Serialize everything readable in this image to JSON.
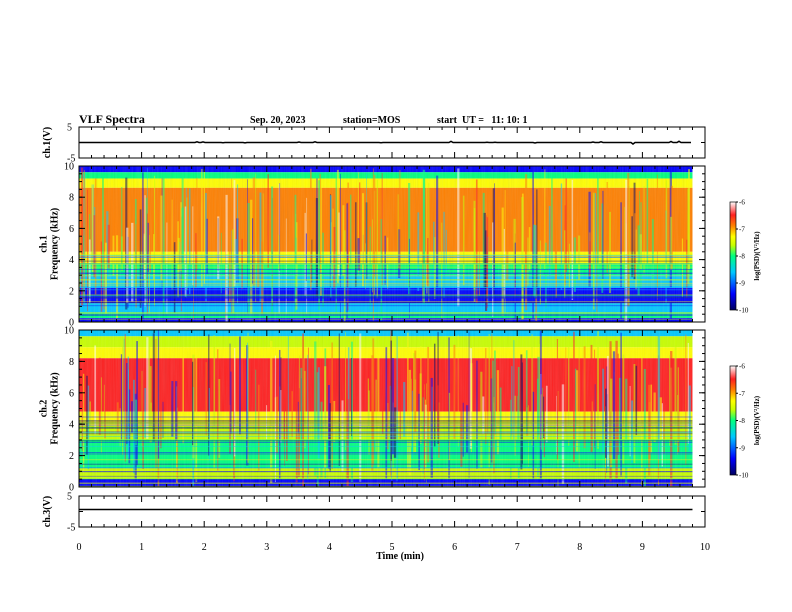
{
  "header": {
    "title": "VLF Spectra",
    "date": "Sep. 20, 2023",
    "station": "station=MOS",
    "start": "start  UT =   11: 10: 1"
  },
  "chart_data": [
    {
      "id": "ch1_waveform",
      "type": "line",
      "ylabel": "ch.1(V)",
      "yticks": [
        "5",
        "-5"
      ],
      "ylim": [
        -5,
        5
      ],
      "baseline_value": 0,
      "color": "#000000"
    },
    {
      "id": "ch1_spectrogram",
      "type": "heatmap",
      "ylabel": "ch.1\nFrequency (kHz)",
      "ylabel_lines": [
        "ch.1",
        "Frequency (kHz)"
      ],
      "yticks": [
        "0",
        "2",
        "4",
        "6",
        "8",
        "10"
      ],
      "ylim": [
        0,
        10
      ],
      "xlim": [
        0,
        10
      ],
      "data_end_min": 9.8,
      "colorbar": {
        "label": "log(PSD)(V²/Hz)",
        "ticks": [
          "-6",
          "-7",
          "-8",
          "-9",
          "-10"
        ],
        "range": [
          -10,
          -6
        ]
      },
      "bands": [
        {
          "from": 9.6,
          "to": 10,
          "level": -9.6
        },
        {
          "from": 9.2,
          "to": 9.6,
          "level": -8.3
        },
        {
          "from": 8.6,
          "to": 9.2,
          "level": -7.6
        },
        {
          "from": 4.5,
          "to": 8.6,
          "level": -6.8
        },
        {
          "from": 3.7,
          "to": 4.5,
          "level": -7.6
        },
        {
          "from": 3.0,
          "to": 3.7,
          "level": -8.4
        },
        {
          "from": 2.2,
          "to": 3.0,
          "level": -9.1
        },
        {
          "from": 1.2,
          "to": 2.2,
          "level": -9.7
        },
        {
          "from": 0.6,
          "to": 1.2,
          "level": -9.2
        },
        {
          "from": 0.25,
          "to": 0.6,
          "level": -8.4
        },
        {
          "from": 0.0,
          "to": 0.25,
          "level": -9.7
        }
      ]
    },
    {
      "id": "ch2_spectrogram",
      "type": "heatmap",
      "ylabel": "ch.2\nFrequency (kHz)",
      "ylabel_lines": [
        "ch.2",
        "Frequency (kHz)"
      ],
      "yticks": [
        "0",
        "2",
        "4",
        "6",
        "8",
        "10"
      ],
      "ylim": [
        0,
        10
      ],
      "xlim": [
        0,
        10
      ],
      "data_end_min": 9.8,
      "colorbar": {
        "label": "log(PSD)(V²/Hz)",
        "ticks": [
          "-6",
          "-7",
          "-8",
          "-9",
          "-10"
        ],
        "range": [
          -10,
          -6
        ]
      },
      "bands": [
        {
          "from": 9.6,
          "to": 10,
          "level": -8.9
        },
        {
          "from": 8.9,
          "to": 9.6,
          "level": -7.9
        },
        {
          "from": 8.2,
          "to": 8.9,
          "level": -7.3
        },
        {
          "from": 4.8,
          "to": 8.2,
          "level": -6.4
        },
        {
          "from": 3.9,
          "to": 4.8,
          "level": -7.3
        },
        {
          "from": 3.0,
          "to": 3.9,
          "level": -8.2
        },
        {
          "from": 1.2,
          "to": 3.0,
          "level": -8.7
        },
        {
          "from": 0.5,
          "to": 1.2,
          "level": -8.0
        },
        {
          "from": 0.0,
          "to": 0.5,
          "level": -9.4
        }
      ]
    },
    {
      "id": "ch3_waveform",
      "type": "line",
      "ylabel": "ch.3(V)",
      "yticks": [
        "5",
        "-5"
      ],
      "ylim": [
        -5,
        5
      ],
      "baseline_value": 0,
      "color": "#000000"
    }
  ],
  "xaxis": {
    "label": "Time (min)",
    "ticks": [
      "0",
      "1",
      "2",
      "3",
      "4",
      "5",
      "6",
      "7",
      "8",
      "9",
      "10"
    ],
    "xlim": [
      0,
      10
    ]
  },
  "colormap": [
    "#000060",
    "#0000ff",
    "#00c8ff",
    "#00ff80",
    "#c8ff00",
    "#ffff00",
    "#ff8000",
    "#ff2020",
    "#ffffff"
  ]
}
